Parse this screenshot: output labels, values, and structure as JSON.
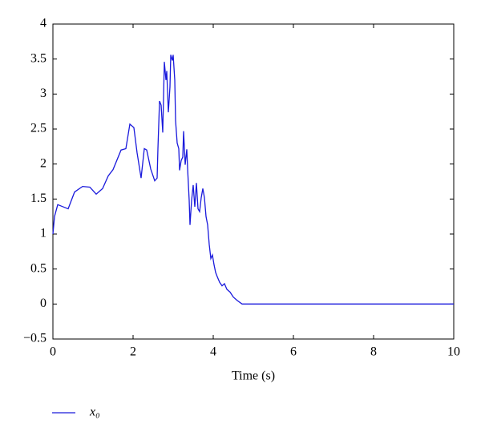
{
  "chart_data": {
    "type": "line",
    "x_label": "Time (s)",
    "xlim": [
      0,
      10
    ],
    "xticks": [
      0,
      2,
      4,
      6,
      8,
      10
    ],
    "ylim": [
      -0.5,
      4
    ],
    "yticks": [
      {
        "value": -0.5,
        "label": "−0.5"
      },
      0,
      0.5,
      1,
      1.5,
      2,
      2.5,
      3,
      3.5,
      4
    ],
    "grid": false,
    "legend": "bottom-left",
    "series": [
      {
        "name": "x₀",
        "color": "#1a1adc",
        "x": [
          0,
          0.04,
          0.12,
          0.38,
          0.54,
          0.74,
          0.92,
          1.08,
          1.24,
          1.38,
          1.5,
          1.7,
          1.82,
          1.92,
          2.02,
          2.1,
          2.2,
          2.28,
          2.34,
          2.44,
          2.54,
          2.6,
          2.62,
          2.66,
          2.7,
          2.74,
          2.78,
          2.82,
          2.84,
          2.88,
          2.92,
          2.94,
          2.98,
          3.0,
          3.04,
          3.06,
          3.1,
          3.14,
          3.16,
          3.2,
          3.24,
          3.26,
          3.3,
          3.34,
          3.36,
          3.4,
          3.42,
          3.46,
          3.5,
          3.54,
          3.58,
          3.62,
          3.66,
          3.7,
          3.74,
          3.78,
          3.82,
          3.86,
          3.9,
          3.94,
          3.98,
          4.02,
          4.06,
          4.1,
          4.16,
          4.22,
          4.28,
          4.34,
          4.42,
          4.5,
          4.6,
          4.72,
          10
        ],
        "values": [
          1.0,
          1.25,
          1.42,
          1.36,
          1.6,
          1.68,
          1.67,
          1.57,
          1.65,
          1.83,
          1.92,
          2.2,
          2.22,
          2.57,
          2.52,
          2.16,
          1.8,
          2.22,
          2.2,
          1.93,
          1.76,
          1.8,
          2.22,
          2.9,
          2.84,
          2.45,
          3.46,
          3.2,
          3.33,
          2.74,
          3.1,
          3.56,
          3.48,
          3.56,
          3.2,
          2.62,
          2.3,
          2.22,
          1.91,
          2.05,
          2.1,
          2.47,
          1.99,
          2.21,
          1.94,
          1.48,
          1.13,
          1.48,
          1.7,
          1.39,
          1.73,
          1.36,
          1.32,
          1.52,
          1.65,
          1.52,
          1.25,
          1.13,
          0.85,
          0.65,
          0.7,
          0.56,
          0.45,
          0.39,
          0.31,
          0.26,
          0.29,
          0.21,
          0.17,
          0.1,
          0.05,
          0,
          0
        ]
      }
    ]
  }
}
